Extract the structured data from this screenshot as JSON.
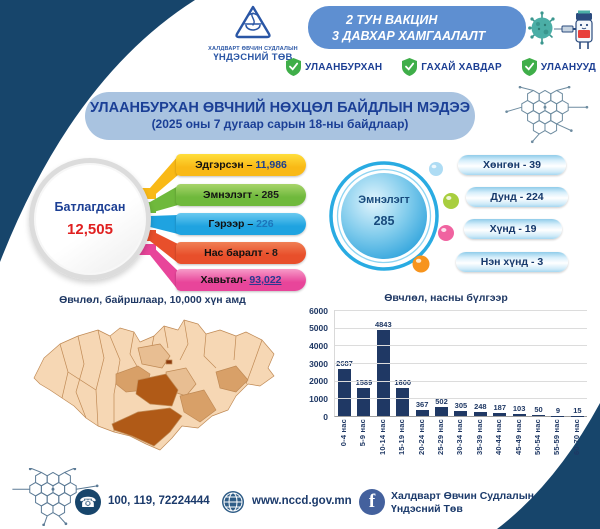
{
  "header": {
    "logo": {
      "line1": "ХАЛДВАРТ ӨВЧИН СУДЛАЛЫН",
      "line2": "ҮНДЭСНИЙ ТӨВ"
    },
    "banner": {
      "line1": "2 ТУН ВАКЦИН",
      "line2": "3 ДАВХАР ХАМГААЛАЛТ"
    },
    "badges": [
      {
        "label": "УЛААНБУРХАН"
      },
      {
        "label": "ГАХАЙ ХАВДАР"
      },
      {
        "label": "УЛААНУУД"
      }
    ]
  },
  "title": {
    "line1": "УЛААНБУРХАН ӨВЧНИЙ НӨХЦӨЛ БАЙДЛЫН МЭДЭЭ",
    "line2": "(2025 оны 7 дугаар сарын 18-ны байдлаар)"
  },
  "confirmed": {
    "label": "Батлагдсан",
    "value": "12,505"
  },
  "outcomes": [
    {
      "label": "Эдгэрсэн –",
      "value": "11,986",
      "color": "#F9B916",
      "color_light": "#FFDE3C",
      "value_color": "#1B3E90"
    },
    {
      "label": "Эмнэлэгт -",
      "value": "285",
      "color": "#6FB93C",
      "color_light": "#A8D46B",
      "value_color": "#1A1A1A"
    },
    {
      "label": "Гэрээр –",
      "value": "226",
      "color": "#1FA3E0",
      "color_light": "#6BC9F0",
      "value_color": "#1B75BB"
    },
    {
      "label": "Нас баралт -",
      "value": "8",
      "color": "#E84F2B",
      "color_light": "#F08055",
      "value_color": "#1A1A1A"
    },
    {
      "label": "Хавьтал-",
      "value": "93,022",
      "color": "#E8459A",
      "color_light": "#F79BC8",
      "value_color": "#2B3990"
    }
  ],
  "hospitalized": {
    "label": "Эмнэлэгт",
    "value": "285"
  },
  "severity": [
    {
      "label": "Хөнгөн - 39"
    },
    {
      "label": "Дунд - 224"
    },
    {
      "label": "Хүнд - 19"
    },
    {
      "label": "Нэн хүнд - 3"
    }
  ],
  "map": {
    "title": "Өвчлөл, байршлаар, 10,000 хүн амд",
    "palette": {
      "low": "#F6D7B4",
      "mid": "#D8A068",
      "mid_light": "#E8BE92",
      "high": "#B05A17",
      "city": "#8C3A0E"
    }
  },
  "chart_data": {
    "type": "bar",
    "title": "Өвчлөл, насны бүлгээр",
    "categories": [
      "0-4 нас",
      "5-9 нас",
      "10-14 нас",
      "15-19 нас",
      "20-24 нас",
      "25-29 нас",
      "30-34 нас",
      "35-39 нас",
      "40-44 нас",
      "45-49 нас",
      "50-54 нас",
      "55-59 нас",
      "60-70 нас"
    ],
    "values": [
      2687,
      1589,
      4843,
      1600,
      367,
      502,
      305,
      248,
      187,
      103,
      50,
      9,
      15
    ],
    "xlabel": "",
    "ylabel": "",
    "ylim": [
      0,
      6000
    ],
    "ytick_step": 1000,
    "grid": true,
    "legend": false,
    "bar_color": "#1F3864"
  },
  "footer": {
    "phone": "100, 119, 72224444",
    "website": "www.nccd.gov.mn",
    "facebook_line1": "Халдварт Өвчин Судлалын",
    "facebook_line2": "Үндэсний Төв"
  },
  "colors": {
    "corner": "#17456B",
    "banner_bg": "#5E8FD1",
    "title_bg": "#A9C3E0",
    "ring_blue": "#29ABE2"
  }
}
